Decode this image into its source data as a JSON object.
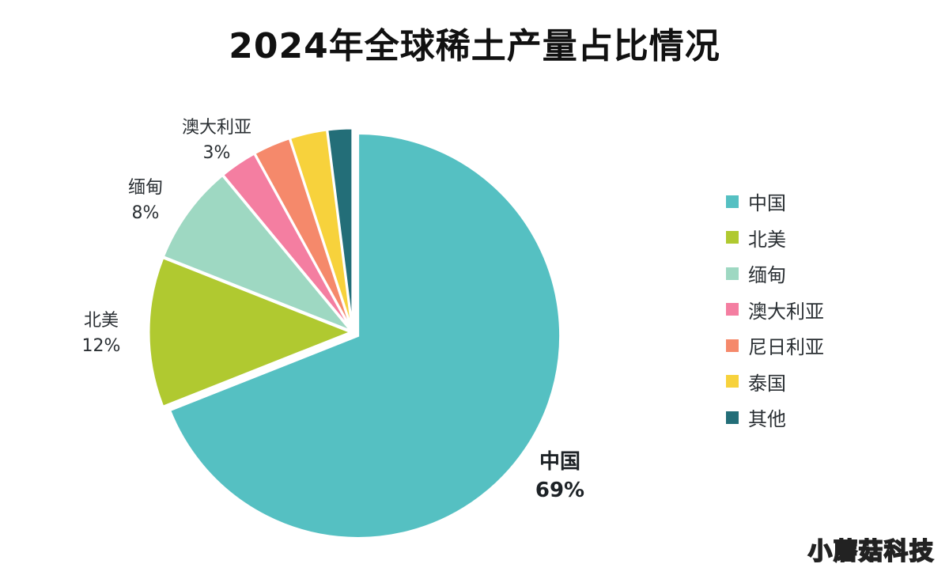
{
  "chart_data": {
    "type": "pie",
    "title": "2024年全球稀土产量占比情况",
    "slices": [
      {
        "name": "中国",
        "label": "中国",
        "value_text": "69%",
        "value": 69,
        "color": "#55c0c2"
      },
      {
        "name": "北美",
        "label": "北美",
        "value_text": "12%",
        "value": 12,
        "color": "#b0c930"
      },
      {
        "name": "缅甸",
        "label": "缅甸",
        "value_text": "8%",
        "value": 8,
        "color": "#9ed8c2"
      },
      {
        "name": "澳大利亚",
        "label": "澳大利亚",
        "value_text": "3%",
        "value": 3,
        "color": "#f47ea1"
      },
      {
        "name": "尼日利亚",
        "label": "",
        "value_text": "",
        "value": 3,
        "color": "#f5896b"
      },
      {
        "name": "泰国",
        "label": "",
        "value_text": "",
        "value": 3,
        "color": "#f7d23c"
      },
      {
        "name": "其他",
        "label": "",
        "value_text": "",
        "value": 2,
        "color": "#236e78"
      }
    ],
    "legend": [
      "中国",
      "北美",
      "缅甸",
      "澳大利亚",
      "尼日利亚",
      "泰国",
      "其他"
    ],
    "legend_position": "right"
  },
  "watermark": "小蘑菇科技"
}
